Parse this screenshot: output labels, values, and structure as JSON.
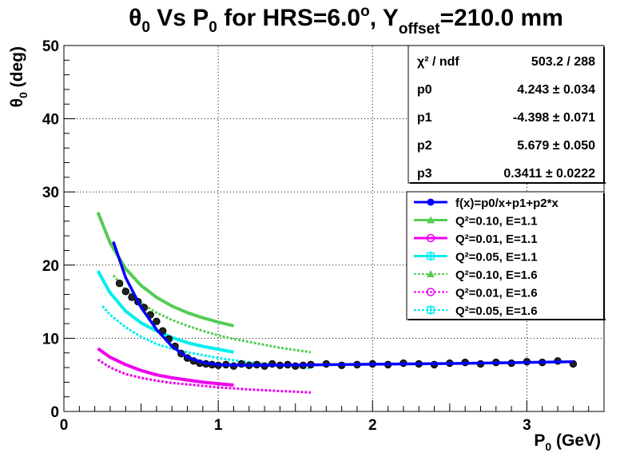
{
  "chart_data": {
    "type": "scatter",
    "title": {
      "pre": "θ",
      "sub0": "0",
      "mid": " Vs P",
      "sub1": "0",
      "mid2": " for HRS=6.0",
      "sup": "o",
      "mid3": ", Y",
      "sub2": "offset",
      "post": "=210.0 mm"
    },
    "xlabel": {
      "main": "P",
      "sub": "0",
      "rest": " (GeV)"
    },
    "ylabel": {
      "main": "θ",
      "sub": "0",
      "rest": " (deg)"
    },
    "xlim": [
      0,
      3.5
    ],
    "ylim": [
      0,
      50
    ],
    "x_ticks": [
      "0",
      "1",
      "2",
      "3"
    ],
    "y_ticks": [
      "0",
      "10",
      "20",
      "30",
      "40",
      "50"
    ],
    "grid": true,
    "stats": {
      "rows": [
        {
          "label": "χ² / ndf",
          "value": "503.2 / 288"
        },
        {
          "label": "p0",
          "value": "4.243 ± 0.034"
        },
        {
          "label": "p1",
          "value": "-4.398 ± 0.071"
        },
        {
          "label": "p2",
          "value": "5.679 ± 0.050"
        },
        {
          "label": "p3",
          "value": "0.3411 ± 0.0222"
        }
      ]
    },
    "legend": [
      {
        "label": "f(x)=p0/x+p1+p2*x",
        "color": "#0000ff",
        "marker": "circle-filled",
        "style": "solid"
      },
      {
        "label": "Q²=0.10, E=1.1",
        "color": "#55cc55",
        "marker": "triangle-filled",
        "style": "solid"
      },
      {
        "label": "Q²=0.01, E=1.1",
        "color": "#ee00ee",
        "marker": "circle-open",
        "style": "solid"
      },
      {
        "label": "Q²=0.05, E=1.1",
        "color": "#00eeee",
        "marker": "square-cross",
        "style": "solid"
      },
      {
        "label": "Q²=0.10, E=1.6",
        "color": "#55cc55",
        "marker": "triangle-filled",
        "style": "dashed"
      },
      {
        "label": "Q²=0.01, E=1.6",
        "color": "#ee00ee",
        "marker": "circle-open",
        "style": "dashed"
      },
      {
        "label": "Q²=0.05, E=1.6",
        "color": "#00eeee",
        "marker": "square-cross",
        "style": "dashed"
      }
    ],
    "series": [
      {
        "name": "Q²=0.10, E=1.1",
        "color": "#55cc55",
        "x": [
          0.22,
          0.3,
          0.4,
          0.5,
          0.6,
          0.7,
          0.8,
          0.9,
          1.0,
          1.1
        ],
        "y": [
          27.2,
          23.0,
          19.5,
          17.2,
          15.6,
          14.4,
          13.5,
          12.8,
          12.2,
          11.7
        ]
      },
      {
        "name": "Q²=0.01, E=1.1",
        "color": "#ee00ee",
        "x": [
          0.22,
          0.3,
          0.4,
          0.5,
          0.6,
          0.7,
          0.8,
          0.9,
          1.0,
          1.1
        ],
        "y": [
          8.6,
          7.4,
          6.4,
          5.6,
          5.0,
          4.6,
          4.3,
          4.0,
          3.8,
          3.6
        ]
      },
      {
        "name": "Q²=0.05, E=1.1",
        "color": "#00eeee",
        "x": [
          0.22,
          0.3,
          0.4,
          0.5,
          0.6,
          0.7,
          0.8,
          0.9,
          1.0,
          1.1
        ],
        "y": [
          19.2,
          16.2,
          13.7,
          12.1,
          11.0,
          10.1,
          9.4,
          8.9,
          8.5,
          8.1
        ]
      },
      {
        "name": "Q²=0.10, E=1.6",
        "color": "#55cc55",
        "dashed": true,
        "x": [
          0.32,
          0.4,
          0.5,
          0.6,
          0.7,
          0.8,
          0.9,
          1.0,
          1.1,
          1.2,
          1.3,
          1.4,
          1.5,
          1.6
        ],
        "y": [
          18.6,
          16.6,
          14.8,
          13.5,
          12.5,
          11.7,
          11.0,
          10.4,
          9.9,
          9.5,
          9.1,
          8.7,
          8.4,
          8.1
        ]
      },
      {
        "name": "Q²=0.01, E=1.6",
        "color": "#ee00ee",
        "dashed": true,
        "x": [
          0.22,
          0.3,
          0.4,
          0.5,
          0.6,
          0.7,
          0.8,
          0.9,
          1.0,
          1.1,
          1.2,
          1.3,
          1.4,
          1.5,
          1.6
        ],
        "y": [
          7.1,
          6.0,
          5.1,
          4.6,
          4.2,
          3.9,
          3.7,
          3.5,
          3.3,
          3.15,
          3.0,
          2.9,
          2.8,
          2.7,
          2.6
        ]
      },
      {
        "name": "Q²=0.05, E=1.6",
        "color": "#00eeee",
        "dashed": true,
        "x": [
          0.25,
          0.3,
          0.4,
          0.5,
          0.6,
          0.7,
          0.8,
          0.9,
          1.0,
          1.1,
          1.2,
          1.3,
          1.4,
          1.5,
          1.6
        ],
        "y": [
          14.4,
          13.2,
          11.5,
          10.2,
          9.2,
          8.6,
          8.1,
          7.7,
          7.3,
          7.0,
          6.7,
          6.5,
          6.3,
          6.1,
          5.9
        ]
      },
      {
        "name": "f(x)=p0/x+p1+p2*x",
        "color": "#0000ff",
        "x": [
          0.32,
          0.4,
          0.5,
          0.6,
          0.7,
          0.8,
          0.9,
          1.0,
          1.2,
          1.5,
          2.0,
          2.5,
          3.0,
          3.3
        ],
        "y": [
          23.2,
          18.3,
          14.2,
          11.2,
          8.9,
          7.4,
          6.7,
          6.4,
          6.3,
          6.35,
          6.45,
          6.55,
          6.7,
          6.8
        ]
      }
    ],
    "data_points": {
      "name": "data",
      "color": "#000000",
      "x": [
        0.36,
        0.4,
        0.44,
        0.48,
        0.52,
        0.56,
        0.6,
        0.64,
        0.68,
        0.72,
        0.76,
        0.8,
        0.84,
        0.88,
        0.92,
        0.96,
        1.0,
        1.05,
        1.1,
        1.15,
        1.2,
        1.25,
        1.3,
        1.35,
        1.4,
        1.45,
        1.5,
        1.55,
        1.6,
        1.7,
        1.8,
        1.9,
        2.0,
        2.1,
        2.2,
        2.3,
        2.4,
        2.5,
        2.6,
        2.7,
        2.8,
        2.9,
        3.0,
        3.1,
        3.2,
        3.3
      ],
      "y": [
        17.5,
        16.4,
        15.6,
        15.0,
        14.2,
        13.2,
        12.3,
        11.0,
        9.9,
        8.9,
        7.9,
        7.3,
        6.9,
        6.6,
        6.5,
        6.4,
        6.3,
        6.4,
        6.2,
        6.5,
        6.3,
        6.4,
        6.2,
        6.5,
        6.3,
        6.4,
        6.2,
        6.3,
        6.4,
        6.5,
        6.3,
        6.4,
        6.5,
        6.4,
        6.6,
        6.5,
        6.4,
        6.6,
        6.7,
        6.5,
        6.7,
        6.6,
        6.8,
        6.7,
        6.9,
        6.5
      ]
    }
  }
}
